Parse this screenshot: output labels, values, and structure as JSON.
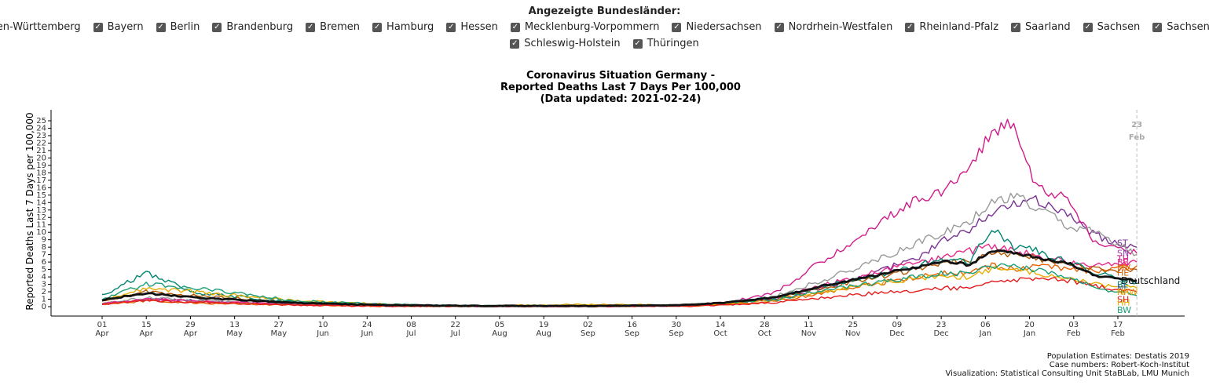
{
  "filter": {
    "title": "Angezeigte Bundesländer:",
    "states": [
      {
        "label": "Baden-Württemberg",
        "checked": true
      },
      {
        "label": "Bayern",
        "checked": true
      },
      {
        "label": "Berlin",
        "checked": true
      },
      {
        "label": "Brandenburg",
        "checked": true
      },
      {
        "label": "Bremen",
        "checked": true
      },
      {
        "label": "Hamburg",
        "checked": true
      },
      {
        "label": "Hessen",
        "checked": true
      },
      {
        "label": "Mecklenburg-Vorpommern",
        "checked": true
      },
      {
        "label": "Niedersachsen",
        "checked": true
      },
      {
        "label": "Nordrhein-Westfalen",
        "checked": true
      },
      {
        "label": "Rheinland-Pfalz",
        "checked": true
      },
      {
        "label": "Saarland",
        "checked": true
      },
      {
        "label": "Sachsen",
        "checked": true
      },
      {
        "label": "Sachsen-Anhalt",
        "checked": true
      },
      {
        "label": "Schleswig-Holstein",
        "checked": true
      },
      {
        "label": "Thüringen",
        "checked": true
      }
    ]
  },
  "chart_data": {
    "type": "line",
    "title": [
      "Coronavirus Situation Germany -",
      "Reported Deaths Last 7 Days Per 100,000",
      "(Data updated: 2021-02-24)"
    ],
    "xlabel": "",
    "ylabel": "Reported Deaths Last 7 Days per 100,000",
    "ylim": [
      0,
      25
    ],
    "yticks": [
      0,
      1,
      2,
      3,
      4,
      5,
      6,
      7,
      8,
      9,
      10,
      11,
      12,
      13,
      14,
      15,
      16,
      17,
      18,
      19,
      20,
      21,
      22,
      23,
      24,
      25
    ],
    "xticks": [
      [
        "01",
        "Apr"
      ],
      [
        "15",
        "Apr"
      ],
      [
        "29",
        "Apr"
      ],
      [
        "13",
        "May"
      ],
      [
        "27",
        "May"
      ],
      [
        "10",
        "Jun"
      ],
      [
        "24",
        "Jun"
      ],
      [
        "08",
        "Jul"
      ],
      [
        "22",
        "Jul"
      ],
      [
        "05",
        "Aug"
      ],
      [
        "19",
        "Aug"
      ],
      [
        "02",
        "Sep"
      ],
      [
        "16",
        "Sep"
      ],
      [
        "30",
        "Sep"
      ],
      [
        "14",
        "Oct"
      ],
      [
        "28",
        "Oct"
      ],
      [
        "11",
        "Nov"
      ],
      [
        "25",
        "Nov"
      ],
      [
        "09",
        "Dec"
      ],
      [
        "23",
        "Dec"
      ],
      [
        "06",
        "Jan"
      ],
      [
        "20",
        "Jan"
      ],
      [
        "03",
        "Feb"
      ],
      [
        "17",
        "Feb"
      ]
    ],
    "marker": {
      "day": "23",
      "month": "Feb"
    },
    "x_dates": [
      "2020-04-01",
      "2020-04-15",
      "2020-05-01",
      "2020-06-01",
      "2020-07-01",
      "2020-08-01",
      "2020-09-01",
      "2020-10-01",
      "2020-10-15",
      "2020-11-01",
      "2020-11-15",
      "2020-12-01",
      "2020-12-15",
      "2020-12-24",
      "2021-01-01",
      "2021-01-08",
      "2021-01-15",
      "2021-01-22",
      "2021-02-01",
      "2021-02-10",
      "2021-02-23"
    ],
    "grid": false,
    "legend": "end-of-line labels",
    "series": [
      {
        "name": "Deutschland",
        "color": "#111111",
        "values": [
          0.9,
          1.8,
          1.2,
          0.5,
          0.2,
          0.1,
          0.1,
          0.2,
          0.5,
          1.3,
          2.8,
          4.1,
          5.3,
          6.2,
          5.6,
          7.6,
          7.2,
          6.6,
          5.9,
          4.2,
          3.5
        ]
      },
      {
        "name": "ST",
        "color": "#7b3294",
        "values": [
          0.5,
          1.0,
          0.8,
          0.3,
          0.1,
          0.05,
          0.05,
          0.1,
          0.3,
          1.0,
          2.5,
          4.5,
          6.5,
          9.0,
          10.5,
          12.5,
          13.8,
          14.3,
          12.5,
          9.5,
          8.0
        ]
      },
      {
        "name": "SN",
        "color": "#d01c8b",
        "values": [
          0.3,
          1.0,
          0.7,
          0.3,
          0.1,
          0.05,
          0.05,
          0.1,
          0.4,
          2.0,
          6.0,
          10.5,
          14.5,
          15.5,
          18.5,
          23.5,
          25.0,
          16.0,
          14.5,
          8.5,
          7.2
        ]
      },
      {
        "name": "TH",
        "color": "#999999",
        "values": [
          0.4,
          1.2,
          0.8,
          0.3,
          0.1,
          0.05,
          0.05,
          0.1,
          0.3,
          1.5,
          3.5,
          6.0,
          8.5,
          10.0,
          11.5,
          14.0,
          15.0,
          13.5,
          11.0,
          10.0,
          7.0
        ]
      },
      {
        "name": "BB",
        "color": "#e7298a",
        "values": [
          0.4,
          1.0,
          0.7,
          0.3,
          0.1,
          0.05,
          0.05,
          0.1,
          0.3,
          1.2,
          2.8,
          4.5,
          6.0,
          6.5,
          7.5,
          8.0,
          7.5,
          7.0,
          6.0,
          5.5,
          6.0
        ]
      },
      {
        "name": "MV",
        "color": "#e66101",
        "values": [
          0.3,
          0.8,
          0.5,
          0.2,
          0.05,
          0.05,
          0.05,
          0.05,
          0.2,
          0.8,
          1.8,
          3.0,
          4.0,
          4.5,
          4.5,
          5.5,
          5.0,
          5.5,
          5.0,
          4.8,
          5.5
        ]
      },
      {
        "name": "HE",
        "color": "#b35806",
        "values": [
          0.8,
          2.0,
          1.5,
          0.6,
          0.2,
          0.1,
          0.1,
          0.2,
          0.5,
          1.2,
          2.5,
          3.8,
          5.0,
          6.0,
          6.0,
          7.5,
          7.0,
          6.5,
          6.0,
          5.0,
          5.0
        ]
      },
      {
        "name": "BE",
        "color": "#018571",
        "values": [
          1.5,
          4.5,
          1.8,
          0.6,
          0.2,
          0.1,
          0.1,
          0.2,
          0.5,
          1.3,
          2.8,
          4.0,
          5.5,
          6.5,
          6.0,
          10.5,
          8.0,
          7.5,
          6.0,
          4.5,
          3.2
        ]
      },
      {
        "name": "NRW",
        "color": "#e6ab02",
        "values": [
          0.8,
          2.5,
          2.0,
          0.8,
          0.3,
          0.1,
          0.3,
          0.2,
          0.4,
          1.0,
          2.0,
          3.0,
          3.8,
          4.0,
          4.0,
          5.0,
          5.0,
          4.5,
          3.8,
          3.0,
          2.5
        ]
      },
      {
        "name": "SH",
        "color": "#e41a1c",
        "values": [
          0.3,
          0.8,
          0.6,
          0.2,
          0.05,
          0.05,
          0.05,
          0.05,
          0.2,
          0.6,
          1.2,
          1.8,
          2.2,
          2.5,
          2.5,
          3.2,
          3.5,
          3.8,
          3.5,
          2.8,
          2.0
        ]
      },
      {
        "name": "BW",
        "color": "#1b9e77",
        "values": [
          1.0,
          3.0,
          2.5,
          0.8,
          0.3,
          0.1,
          0.1,
          0.2,
          0.5,
          1.0,
          2.2,
          3.2,
          4.0,
          4.5,
          4.5,
          5.5,
          5.5,
          5.0,
          4.0,
          2.5,
          1.5
        ]
      }
    ],
    "end_labels": [
      {
        "text": "ST",
        "color": "#7b3294",
        "y": 8.6
      },
      {
        "text": "SN",
        "color": "#8e44ad",
        "y": 7.2
      },
      {
        "text": "TH",
        "color": "#d01c8b",
        "y": 6.5
      },
      {
        "text": "BB",
        "color": "#e7298a",
        "y": 6.0
      },
      {
        "text": "MV",
        "color": "#e66101",
        "y": 5.3
      },
      {
        "text": "HE",
        "color": "#d95f02",
        "y": 4.6
      },
      {
        "text": "Deutschland",
        "color": "#111111",
        "y": 3.5
      },
      {
        "text": "BE",
        "color": "#018571",
        "y": 3.0
      },
      {
        "text": "NI",
        "color": "#3366cc",
        "y": 2.5
      },
      {
        "text": "RP",
        "color": "#d95f02",
        "y": 2.0
      },
      {
        "text": "NRW",
        "color": "#e6ab02",
        "y": 2.0
      },
      {
        "text": "SH",
        "color": "#e41a1c",
        "y": 1.0
      },
      {
        "text": "HH",
        "color": "#e6ab02",
        "y": 0.6
      },
      {
        "text": "BW",
        "color": "#1b9e77",
        "y": -0.4
      }
    ]
  },
  "credits": [
    "Population Estimates: Destatis 2019",
    "Case numbers: Robert-Koch-Institut",
    "Visualization: Statistical Consulting Unit StaBLab, LMU Munich"
  ]
}
